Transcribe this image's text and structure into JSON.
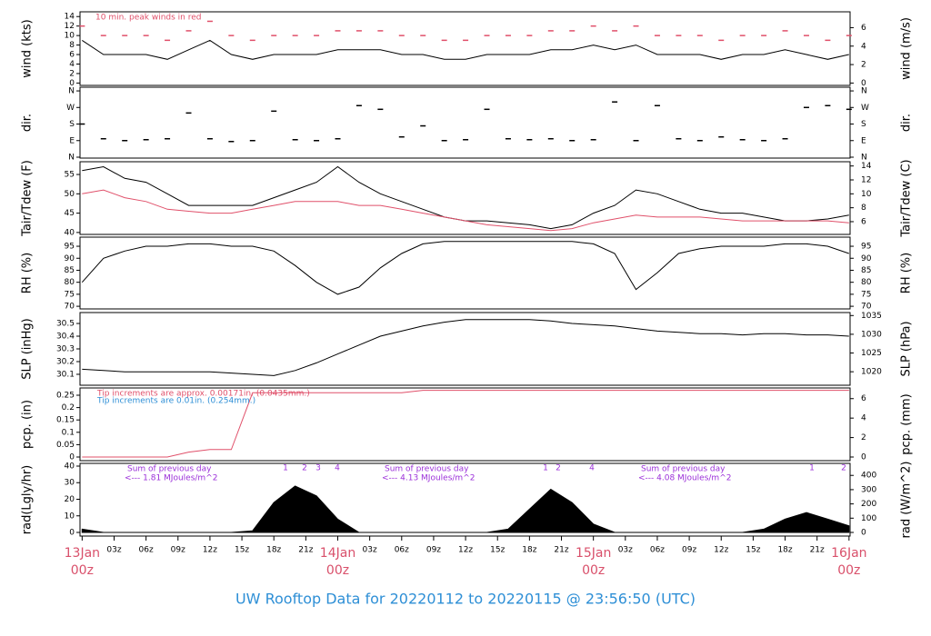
{
  "chart_data": [
    {
      "type": "line",
      "ylabel": "wind (kts)",
      "y2label": "wind (m/s)",
      "xlim": [
        -0.2,
        72.1
      ],
      "ylim": [
        -0.5,
        15
      ],
      "yticks": [
        0,
        2,
        4,
        6,
        8,
        10,
        12,
        14
      ],
      "y2lim": [
        -0.257,
        7.716
      ],
      "y2ticks": [
        0,
        2,
        4,
        6
      ],
      "annotations": [
        "10 min. peak winds in red"
      ],
      "x": [
        0,
        2,
        4,
        6,
        8,
        10,
        12,
        14,
        16,
        18,
        20,
        22,
        24,
        26,
        28,
        30,
        32,
        34,
        36,
        38,
        40,
        42,
        44,
        46,
        48,
        50,
        52,
        54,
        56,
        58,
        60,
        62,
        64,
        66,
        68,
        70,
        72
      ],
      "series": [
        {
          "color": "#000000",
          "marker": "line",
          "values": [
            9,
            6,
            6,
            6,
            5,
            7,
            9,
            6,
            5,
            6,
            6,
            6,
            7,
            7,
            7,
            6,
            6,
            5,
            5,
            6,
            6,
            6,
            7,
            7,
            8,
            7,
            8,
            6,
            6,
            6,
            5,
            6,
            6,
            7,
            6,
            5,
            6
          ]
        },
        {
          "color": "#e0506a",
          "marker": "dash",
          "values": [
            12,
            10,
            10,
            10,
            9,
            11,
            13,
            10,
            9,
            10,
            10,
            10,
            11,
            11,
            11,
            10,
            10,
            9,
            9,
            10,
            10,
            10,
            11,
            11,
            12,
            11,
            12,
            10,
            10,
            10,
            9,
            10,
            10,
            11,
            10,
            9,
            10
          ]
        }
      ]
    },
    {
      "type": "scatter",
      "ylabel": "dir.",
      "xlim": [
        -0.2,
        72.1
      ],
      "ylim": [
        -5,
        380
      ],
      "yticks": [
        {
          "value": 0,
          "label": "N"
        },
        {
          "value": 90,
          "label": "E"
        },
        {
          "value": 180,
          "label": "S"
        },
        {
          "value": 270,
          "label": "W"
        },
        {
          "value": 360,
          "label": "N"
        }
      ],
      "y2lim": [
        -5,
        380
      ],
      "y2ticks": [
        {
          "value": 0,
          "label": "N"
        },
        {
          "value": 90,
          "label": "E"
        },
        {
          "value": 180,
          "label": "S"
        },
        {
          "value": 270,
          "label": "W"
        },
        {
          "value": 360,
          "label": "N"
        }
      ],
      "y2label": "dir.",
      "x": [
        0,
        2,
        4,
        6,
        8,
        10,
        12,
        14,
        16,
        18,
        20,
        22,
        24,
        26,
        28,
        30,
        32,
        34,
        36,
        38,
        40,
        42,
        44,
        46,
        48,
        50,
        52,
        54,
        56,
        58,
        60,
        62,
        64,
        66,
        68,
        70,
        72
      ],
      "series": [
        {
          "color": "#000000",
          "marker": "dash",
          "values": [
            180,
            100,
            90,
            95,
            100,
            240,
            100,
            85,
            90,
            250,
            95,
            90,
            100,
            280,
            260,
            110,
            170,
            90,
            95,
            260,
            100,
            95,
            100,
            90,
            95,
            300,
            90,
            280,
            100,
            90,
            110,
            95,
            90,
            100,
            270,
            280,
            260
          ]
        }
      ]
    },
    {
      "type": "line",
      "ylabel": "Tair/Tdew (F)",
      "y2label": "Tair/Tdew (C)",
      "xlim": [
        -0.2,
        72.1
      ],
      "ylim": [
        39.5,
        58.3
      ],
      "yticks": [
        40,
        45,
        50,
        55
      ],
      "y2lim": [
        4.17,
        14.61
      ],
      "y2ticks": [
        6,
        8,
        10,
        12,
        14
      ],
      "x": [
        0,
        2,
        4,
        6,
        8,
        10,
        12,
        14,
        16,
        18,
        20,
        22,
        24,
        26,
        28,
        30,
        32,
        34,
        36,
        38,
        40,
        42,
        44,
        46,
        48,
        50,
        52,
        54,
        56,
        58,
        60,
        62,
        64,
        66,
        68,
        70,
        72
      ],
      "series": [
        {
          "color": "#000000",
          "marker": "line",
          "values": [
            56,
            57,
            54,
            53,
            50,
            47,
            47,
            47,
            47,
            49,
            51,
            53,
            57,
            53,
            50,
            48,
            46,
            44,
            43,
            43,
            42.5,
            42,
            41,
            42,
            45,
            47,
            51,
            50,
            48,
            46,
            45,
            45,
            44,
            43,
            43,
            43.5,
            44.5
          ]
        },
        {
          "color": "#e0506a",
          "marker": "line",
          "values": [
            50,
            51,
            49,
            48,
            46,
            45.5,
            45,
            45,
            46,
            47,
            48,
            48,
            48,
            47,
            47,
            46,
            45,
            44,
            43,
            42,
            41.5,
            41,
            40.5,
            41,
            42.5,
            43.5,
            44.5,
            44,
            44,
            44,
            43.5,
            43,
            43,
            43,
            43,
            43,
            42.5
          ]
        }
      ]
    },
    {
      "type": "line",
      "ylabel": "RH (%)",
      "y2label": "RH (%)",
      "xlim": [
        -0.2,
        72.1
      ],
      "ylim": [
        68.9,
        98.8
      ],
      "yticks": [
        70,
        75,
        80,
        85,
        90,
        95
      ],
      "y2lim": [
        68.9,
        98.8
      ],
      "y2ticks": [
        70,
        75,
        80,
        85,
        90,
        95
      ],
      "x": [
        0,
        2,
        4,
        6,
        8,
        10,
        12,
        14,
        16,
        18,
        20,
        22,
        24,
        26,
        28,
        30,
        32,
        34,
        36,
        38,
        40,
        42,
        44,
        46,
        48,
        50,
        52,
        54,
        56,
        58,
        60,
        62,
        64,
        66,
        68,
        70,
        72
      ],
      "series": [
        {
          "color": "#000000",
          "marker": "line",
          "values": [
            80,
            90,
            93,
            95,
            95,
            96,
            96,
            95,
            95,
            93,
            87,
            80,
            75,
            78,
            86,
            92,
            96,
            97,
            97,
            97,
            97,
            97,
            97,
            97,
            96,
            92,
            77,
            84,
            92,
            94,
            95,
            95,
            95,
            96,
            96,
            95,
            92
          ]
        }
      ]
    },
    {
      "type": "line",
      "ylabel": "SLP (inHg)",
      "y2label": "SLP (hPa)",
      "xlim": [
        -0.2,
        72.1
      ],
      "ylim": [
        30.014,
        30.586
      ],
      "yticks": [
        30.1,
        30.2,
        30.3,
        30.4,
        30.5
      ],
      "y2lim": [
        1016.4,
        1035.8
      ],
      "y2ticks": [
        1020,
        1025,
        1030,
        1035
      ],
      "x": [
        0,
        2,
        4,
        6,
        8,
        10,
        12,
        14,
        16,
        18,
        20,
        22,
        24,
        26,
        28,
        30,
        32,
        34,
        36,
        38,
        40,
        42,
        44,
        46,
        48,
        50,
        52,
        54,
        56,
        58,
        60,
        62,
        64,
        66,
        68,
        70,
        72
      ],
      "series": [
        {
          "color": "#000000",
          "marker": "line",
          "values": [
            30.14,
            30.13,
            30.12,
            30.12,
            30.12,
            30.12,
            30.12,
            30.11,
            30.1,
            30.09,
            30.13,
            30.19,
            30.26,
            30.33,
            30.4,
            30.44,
            30.48,
            30.51,
            30.53,
            30.53,
            30.53,
            30.53,
            30.52,
            30.5,
            30.49,
            30.48,
            30.46,
            30.44,
            30.43,
            30.42,
            30.42,
            30.41,
            30.42,
            30.42,
            30.41,
            30.41,
            30.4
          ]
        }
      ]
    },
    {
      "type": "line",
      "ylabel": "pcp. (in)",
      "y2label": "pcp. (mm)",
      "xlim": [
        -0.2,
        72.1
      ],
      "ylim": [
        -0.0147,
        0.2794
      ],
      "yticks": [
        0,
        0.05,
        0.1,
        0.15,
        0.2,
        0.25
      ],
      "y2lim": [
        -0.373,
        7.097
      ],
      "y2ticks": [
        0,
        2,
        4,
        6
      ],
      "annotations": [
        "Tip increments are approx. 0.00171in. (0.0435mm.)",
        "Tip increments are 0.01in. (0.254mm.)"
      ],
      "annotation_colors": [
        "#e0506a",
        "#2e8fd6"
      ],
      "x": [
        0,
        2,
        4,
        6,
        8,
        10,
        12,
        14,
        16,
        18,
        20,
        22,
        24,
        26,
        28,
        30,
        32,
        34,
        36,
        38,
        40,
        42,
        44,
        46,
        48,
        50,
        52,
        54,
        56,
        58,
        60,
        62,
        64,
        66,
        68,
        70,
        72
      ],
      "series": [
        {
          "color": "#e0506a",
          "marker": "line",
          "values": [
            0,
            0,
            0,
            0,
            0,
            0.02,
            0.03,
            0.03,
            0.26,
            0.26,
            0.26,
            0.26,
            0.26,
            0.26,
            0.26,
            0.26,
            0.27,
            0.27,
            0.27,
            0.27,
            0.27,
            0.27,
            0.27,
            0.27,
            0.27,
            0.27,
            0.27,
            0.27,
            0.27,
            0.27,
            0.27,
            0.27,
            0.27,
            0.27,
            0.27,
            0.27,
            0.27
          ]
        }
      ]
    },
    {
      "type": "area",
      "ylabel": "rad(Lgly/hr)",
      "y2label": "rad (W/m^2)",
      "xlim": [
        -0.2,
        72.1
      ],
      "ylim": [
        -2.19,
        41.64
      ],
      "yticks": [
        0,
        10,
        20,
        30,
        40
      ],
      "y2lim": [
        -25.5,
        484.3
      ],
      "y2ticks": [
        0,
        100,
        200,
        300,
        400
      ],
      "annotations": [
        "Sum of previous day",
        "<--- 1.81 MJoules/m^2",
        "Sum of previous day",
        "<--- 4.13 MJoules/m^2",
        "Sum of previous day",
        "<--- 4.08 MJoules/m^2"
      ],
      "peak_labels": [
        "1",
        "2",
        "3",
        "4",
        "1",
        "2",
        "4",
        "1",
        "2"
      ],
      "xticks": [
        {
          "value": 0,
          "label": "13Jan\n00z"
        },
        {
          "value": 3,
          "label": "03z"
        },
        {
          "value": 6,
          "label": "06z"
        },
        {
          "value": 9,
          "label": "09z"
        },
        {
          "value": 12,
          "label": "12z"
        },
        {
          "value": 15,
          "label": "15z"
        },
        {
          "value": 18,
          "label": "18z"
        },
        {
          "value": 21,
          "label": "21z"
        },
        {
          "value": 24,
          "label": "14Jan\n00z"
        },
        {
          "value": 27,
          "label": "03z"
        },
        {
          "value": 30,
          "label": "06z"
        },
        {
          "value": 33,
          "label": "09z"
        },
        {
          "value": 36,
          "label": "12z"
        },
        {
          "value": 39,
          "label": "15z"
        },
        {
          "value": 42,
          "label": "18z"
        },
        {
          "value": 45,
          "label": "21z"
        },
        {
          "value": 48,
          "label": "15Jan\n00z"
        },
        {
          "value": 51,
          "label": "03z"
        },
        {
          "value": 54,
          "label": "06z"
        },
        {
          "value": 57,
          "label": "09z"
        },
        {
          "value": 60,
          "label": "12z"
        },
        {
          "value": 63,
          "label": "15z"
        },
        {
          "value": 66,
          "label": "18z"
        },
        {
          "value": 69,
          "label": "21z"
        },
        {
          "value": 72,
          "label": "16Jan\n00z"
        }
      ],
      "x": [
        0,
        2,
        4,
        6,
        8,
        10,
        12,
        14,
        16,
        18,
        20,
        22,
        24,
        26,
        28,
        30,
        32,
        34,
        36,
        38,
        40,
        42,
        44,
        46,
        48,
        50,
        52,
        54,
        56,
        58,
        60,
        62,
        64,
        66,
        68,
        70,
        72
      ],
      "series": [
        {
          "color": "#000000",
          "marker": "area",
          "values": [
            2,
            0,
            0,
            0,
            0,
            0,
            0,
            0,
            1,
            18,
            28,
            22,
            8,
            0,
            0,
            0,
            0,
            0,
            0,
            0,
            2,
            14,
            26,
            18,
            5,
            0,
            0,
            0,
            0,
            0,
            0,
            0,
            2,
            8,
            12,
            8,
            4
          ]
        }
      ]
    }
  ],
  "title": "UW Rooftop Data for 20220112  to  20220115 @ 23:56:50  (UTC)"
}
